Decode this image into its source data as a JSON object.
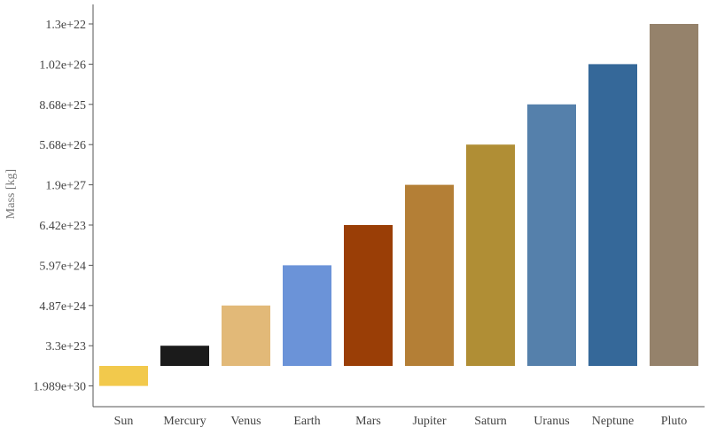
{
  "chart_data": {
    "type": "bar",
    "title": "",
    "xlabel": "",
    "ylabel": "Mass [kg]",
    "y_axis_type": "category",
    "y_categories": [
      "1.989e+30",
      "3.3e+23",
      "4.87e+24",
      "5.97e+24",
      "6.42e+23",
      "1.9e+27",
      "5.68e+26",
      "8.68e+25",
      "1.02e+26",
      "1.3e+22"
    ],
    "categories": [
      "Sun",
      "Mercury",
      "Venus",
      "Earth",
      "Mars",
      "Jupiter",
      "Saturn",
      "Uranus",
      "Neptune",
      "Pluto"
    ],
    "values": [
      "1.989e+30",
      "3.3e+23",
      "4.87e+24",
      "5.97e+24",
      "6.42e+23",
      "1.9e+27",
      "5.68e+26",
      "8.68e+25",
      "1.02e+26",
      "1.3e+22"
    ],
    "colors": [
      "#f2c94c",
      "#1b1b1b",
      "#e2b978",
      "#6b93d8",
      "#9a3e06",
      "#b47f36",
      "#b08e35",
      "#5580ab",
      "#356899",
      "#95826b"
    ],
    "grid": false,
    "legend": "none"
  }
}
